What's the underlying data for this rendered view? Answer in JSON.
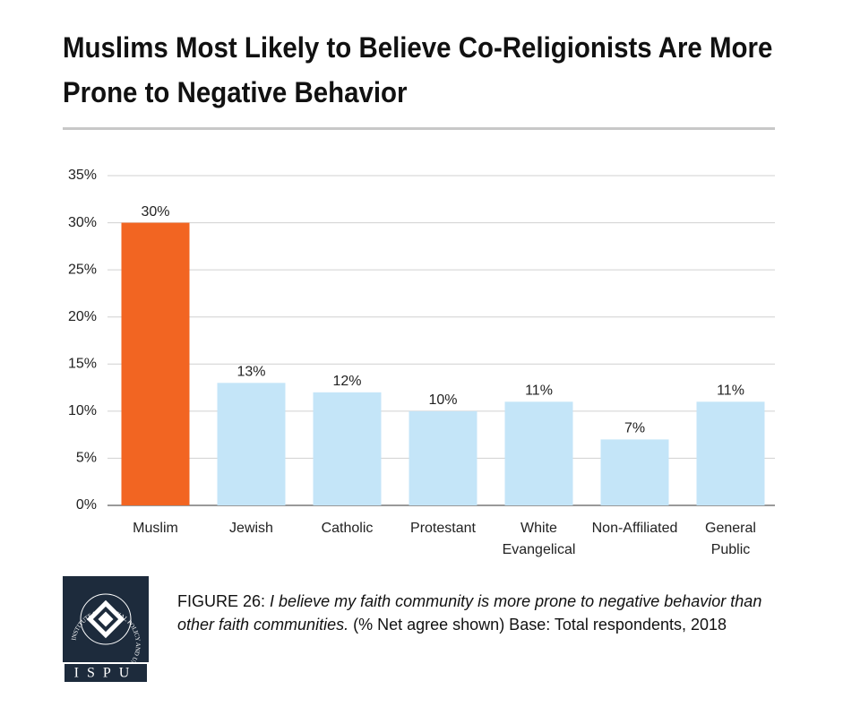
{
  "chart_data": {
    "type": "bar",
    "title": "Muslims Most Likely to Believe Co-Religionists Are More Prone to Negative Behavior",
    "categories": [
      "Muslim",
      "Jewish",
      "Catholic",
      "Protestant",
      "White Evangelical",
      "Non-Affiliated",
      "General Public"
    ],
    "values": [
      30,
      13,
      12,
      10,
      11,
      7,
      11
    ],
    "value_labels": [
      "30%",
      "13%",
      "12%",
      "10%",
      "11%",
      "7%",
      "11%"
    ],
    "colors": [
      "#f26522",
      "#c4e5f8",
      "#c4e5f8",
      "#c4e5f8",
      "#c4e5f8",
      "#c4e5f8",
      "#c4e5f8"
    ],
    "ylim": [
      0,
      35
    ],
    "yticks": [
      {
        "value": 0,
        "label": "0%"
      },
      {
        "value": 5,
        "label": "5%"
      },
      {
        "value": 10,
        "label": "10%"
      },
      {
        "value": 15,
        "label": "15%"
      },
      {
        "value": 20,
        "label": "20%"
      },
      {
        "value": 25,
        "label": "25%"
      },
      {
        "value": 30,
        "label": "30%"
      },
      {
        "value": 35,
        "label": "35%"
      }
    ],
    "grid": true
  },
  "caption": {
    "label": "FIGURE 26",
    "question": "I believe my faith community is more prone to negative behavior than other faith communities.",
    "note": "(% Net agree shown) Base: Total respondents, 2018"
  },
  "logo": {
    "acronym": "ISPU",
    "name": "INSTITUTE FOR SOCIAL POLICY AND UNDERSTANDING"
  }
}
